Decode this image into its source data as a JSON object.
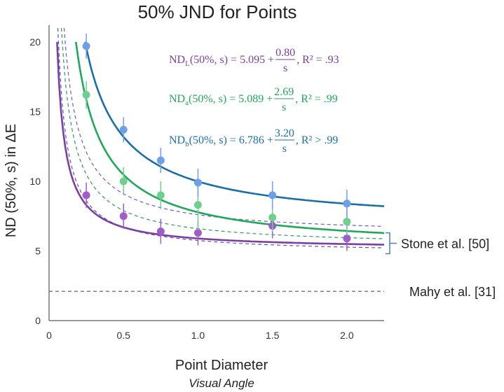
{
  "chart_data": {
    "type": "line",
    "title": "50% JND for Points",
    "xlabel": "Point Diameter",
    "xlabel_sub": "Visual Angle",
    "ylabel": "ND (50%, s) in ΔE",
    "xlim": [
      0,
      2.25
    ],
    "ylim": [
      0,
      21
    ],
    "x_ticks": [
      0,
      0.5,
      1.0,
      1.5,
      2.0
    ],
    "x_tick_labels": [
      "0",
      "0.5",
      "1.0",
      "1.5",
      "2.0"
    ],
    "y_ticks": [
      0,
      5,
      10,
      15,
      20
    ],
    "y_tick_labels": [
      "0",
      "5",
      "10",
      "15",
      "20"
    ],
    "grid": false,
    "series": [
      {
        "key": "L",
        "color": "#7b3fa0",
        "point_color": "#a05cc8",
        "fit": {
          "a": 5.095,
          "b": 0.8
        },
        "points": [
          {
            "x": 0.25,
            "y": 9.0,
            "err": 0.9
          },
          {
            "x": 0.5,
            "y": 7.5,
            "err": 0.9
          },
          {
            "x": 0.75,
            "y": 6.4,
            "err": 0.9
          },
          {
            "x": 1.0,
            "y": 6.3,
            "err": 0.9
          },
          {
            "x": 1.5,
            "y": 6.8,
            "err": 0.9
          },
          {
            "x": 2.0,
            "y": 5.9,
            "err": 0.9
          }
        ],
        "equation": {
          "lhs": "ND",
          "sub": "L",
          "args": " (50%, s) = 5.095 + ",
          "num": "0.80",
          "den": "s",
          "tail": ", R² = .93"
        }
      },
      {
        "key": "a",
        "color": "#1fa85a",
        "point_color": "#6fcf8f",
        "fit": {
          "a": 5.089,
          "b": 2.69
        },
        "points": [
          {
            "x": 0.25,
            "y": 16.2,
            "err": 1.0
          },
          {
            "x": 0.5,
            "y": 10.0,
            "err": 1.0
          },
          {
            "x": 0.75,
            "y": 9.0,
            "err": 1.0
          },
          {
            "x": 1.0,
            "y": 8.3,
            "err": 1.8
          },
          {
            "x": 1.5,
            "y": 7.4,
            "err": 1.0
          },
          {
            "x": 2.0,
            "y": 7.1,
            "err": 1.0
          }
        ],
        "equation": {
          "lhs": "ND",
          "sub": "a",
          "args": " (50%, s) = 5.089 + ",
          "num": "2.69",
          "den": "s",
          "tail": ", R² = .99"
        }
      },
      {
        "key": "b",
        "color": "#1a6fa8",
        "point_color": "#6f9fe8",
        "fit": {
          "a": 6.786,
          "b": 3.2
        },
        "points": [
          {
            "x": 0.25,
            "y": 19.7,
            "err": 0.9
          },
          {
            "x": 0.5,
            "y": 13.7,
            "err": 0.9
          },
          {
            "x": 0.75,
            "y": 11.5,
            "err": 0.9
          },
          {
            "x": 1.0,
            "y": 9.9,
            "err": 1.0
          },
          {
            "x": 1.5,
            "y": 9.0,
            "err": 1.0
          },
          {
            "x": 2.0,
            "y": 8.4,
            "err": 1.0
          }
        ],
        "equation": {
          "lhs": "ND",
          "sub": "b",
          "args": " (50%, s) = 6.786 + ",
          "num": "3.20",
          "den": "s",
          "tail": ", R² > .99"
        }
      }
    ],
    "reference_curves": [
      {
        "color": "#6a5acd",
        "a": 6.1,
        "b": 1.5,
        "style": "dashed"
      },
      {
        "color": "#2a9a5a",
        "a": 5.3,
        "b": 1.3,
        "style": "dashed"
      },
      {
        "color": "#5555cc",
        "a": 4.8,
        "b": 0.95,
        "style": "dashed"
      }
    ],
    "reference_lines": [
      {
        "label": "Mahy et al. [31]",
        "y": 2.1,
        "color": "#555555",
        "style": "dashed"
      }
    ],
    "annotations": [
      {
        "label": "Stone et al. [50]",
        "y_range": [
          4.8,
          6.3
        ],
        "color": "#4a7fc0"
      }
    ]
  }
}
